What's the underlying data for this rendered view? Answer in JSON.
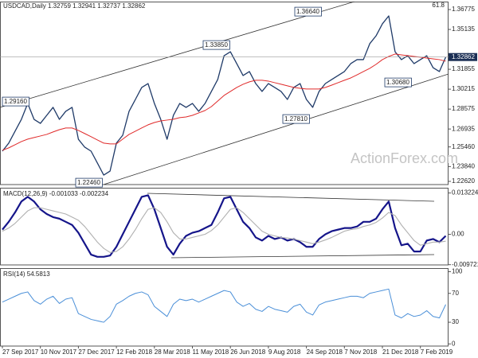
{
  "chart_data": [
    {
      "type": "line",
      "title": "USDCAD,Daily  1.32759 1.32941 1.32737 1.32862",
      "categories": [
        "27 Sep 2017",
        null,
        null,
        null,
        null,
        null,
        "10 Nov 2017",
        null,
        null,
        null,
        null,
        null,
        "27 Dec 2017",
        null,
        null,
        null,
        null,
        null,
        "12 Feb 2018",
        null,
        null,
        null,
        null,
        null,
        "28 Mar 2018",
        null,
        null,
        null,
        null,
        null,
        "11 May 2018",
        null,
        null,
        null,
        null,
        null,
        "26 Jun 2018",
        null,
        null,
        null,
        null,
        null,
        "9 Aug 2018",
        null,
        null,
        null,
        null,
        null,
        "24 Sep 2018",
        null,
        null,
        null,
        null,
        null,
        "7 Nov 2018",
        null,
        null,
        null,
        null,
        null,
        "21 Dec 2018",
        null,
        null,
        null,
        null,
        null,
        "7 Feb 2019",
        null,
        null,
        null,
        null
      ],
      "series": [
        {
          "color": "#1f3a68",
          "values": [
            1.2511,
            1.2577,
            1.2675,
            1.2773,
            1.2904,
            1.2773,
            1.274,
            1.2806,
            1.2872,
            1.2773,
            1.2839,
            1.2872,
            1.2609,
            1.2544,
            1.2511,
            1.2413,
            1.2314,
            1.2347,
            1.2577,
            1.2642,
            1.2839,
            1.2937,
            1.3036,
            1.3068,
            1.2904,
            1.2773,
            1.2609,
            1.2806,
            1.2904,
            1.2872,
            1.2904,
            1.2839,
            1.2904,
            1.3003,
            1.3101,
            1.3297,
            1.333,
            1.3232,
            1.3134,
            1.3167,
            1.3068,
            1.3003,
            1.3068,
            1.3036,
            1.3003,
            1.2937,
            1.3036,
            1.3068,
            1.2937,
            1.2872,
            1.3003,
            1.3068,
            1.3101,
            1.3134,
            1.3167,
            1.3232,
            1.3265,
            1.3265,
            1.3396,
            1.3461,
            1.356,
            1.3625,
            1.333,
            1.3265,
            1.3297,
            1.3232,
            1.3265,
            1.3297,
            1.3199,
            1.3167,
            1.3286
          ]
        },
        {
          "color": "#e02a2a",
          "values": [
            1.2518,
            1.2538,
            1.2564,
            1.259,
            1.261,
            1.2623,
            1.2636,
            1.2649,
            1.2669,
            1.2688,
            1.2702,
            1.2702,
            1.2682,
            1.2656,
            1.263,
            1.2603,
            1.2577,
            1.2571,
            1.2571,
            1.261,
            1.2649,
            1.2675,
            1.2702,
            1.2728,
            1.2747,
            1.276,
            1.2767,
            1.2774,
            1.2787,
            1.2793,
            1.2806,
            1.2826,
            1.2846,
            1.2878,
            1.2924,
            1.297,
            1.3003,
            1.3036,
            1.3062,
            1.3082,
            1.3095,
            1.3095,
            1.3088,
            1.3075,
            1.3062,
            1.3049,
            1.3036,
            1.3029,
            1.3023,
            1.3023,
            1.3023,
            1.3036,
            1.3055,
            1.3075,
            1.3095,
            1.3114,
            1.314,
            1.3167,
            1.3193,
            1.3226,
            1.3265,
            1.3291,
            1.3311,
            1.3304,
            1.3298,
            1.3291,
            1.3285,
            1.3278,
            1.3271,
            1.3265,
            1.3252
          ]
        }
      ],
      "ylim": [
        1.22358,
        1.3743
      ],
      "yticks": [
        1.36775,
        1.35135,
        1.31855,
        1.30215,
        1.28575,
        1.26935,
        {
          "value": 1.2546,
          "label": "1.25460"
        },
        {
          "value": 1.2384,
          "label": "1.23840"
        },
        {
          "value": 1.2262,
          "label": "1.22620"
        }
      ],
      "last_price": 1.32862,
      "level_label": "61.8",
      "annotations": [
        "1.36640",
        "1.33850",
        "1.29160",
        "1.22460",
        "1.27810",
        "1.30680"
      ],
      "watermark": "ActionForex.com"
    },
    {
      "type": "line",
      "title": "MACD(12,26,9) -0.001033 -0.002234",
      "series": [
        {
          "color": "#15158a",
          "values": [
            0.0015,
            0.004,
            0.007,
            0.0105,
            0.012,
            0.0105,
            0.008,
            0.0065,
            0.0055,
            0.005,
            0.004,
            0.003,
            0.0005,
            -0.003,
            -0.0065,
            -0.0072,
            -0.0072,
            -0.0068,
            -0.004,
            0,
            0.004,
            0.008,
            0.012,
            0.0125,
            0.008,
            0.002,
            -0.004,
            -0.0065,
            -0.003,
            -0.0005,
            0.0005,
            0.001,
            0.002,
            0.003,
            0.007,
            0.0115,
            0.012,
            0.008,
            0.004,
            0.002,
            -0.001,
            -0.002,
            -0.0005,
            -0.0015,
            -0.001,
            -0.002,
            -0.0015,
            -0.0025,
            -0.004,
            -0.004,
            -0.0015,
            0,
            0.001,
            0.0015,
            0.002,
            0.002,
            0.0025,
            0.004,
            0.004,
            0.005,
            0.008,
            0.0105,
            0.002,
            -0.0035,
            -0.003,
            -0.0055,
            -0.0055,
            -0.002,
            -0.0015,
            -0.0025,
            -0.0005
          ]
        },
        {
          "color": "#b0b0b0",
          "values": [
            0.001,
            0.002,
            0.0035,
            0.0055,
            0.0075,
            0.0085,
            0.0085,
            0.008,
            0.0075,
            0.007,
            0.0065,
            0.0055,
            0.0045,
            0.0025,
            0,
            -0.0025,
            -0.0045,
            -0.0058,
            -0.0055,
            -0.004,
            -0.0015,
            0.0015,
            0.005,
            0.008,
            0.0085,
            0.007,
            0.004,
            0.0005,
            -0.0015,
            -0.0015,
            -0.001,
            -0.0005,
            0,
            0.0012,
            0.003,
            0.0055,
            0.008,
            0.0085,
            0.007,
            0.005,
            0.003,
            0.001,
            0,
            -0.0005,
            -0.001,
            -0.0012,
            -0.0015,
            -0.002,
            -0.0025,
            -0.003,
            -0.0025,
            -0.0018,
            -0.001,
            0,
            0.001,
            0.0015,
            0.0018,
            0.0025,
            0.003,
            0.0038,
            0.0052,
            0.007,
            0.006,
            0.003,
            0.0005,
            -0.002,
            -0.0035,
            -0.003,
            -0.0025,
            -0.0025,
            -0.0022
          ]
        }
      ],
      "ylim": [
        -0.0098,
        0.0149
      ],
      "yticks": [
        0.013224,
        {
          "value": 0,
          "label": "0.00"
        },
        -0.009721
      ]
    },
    {
      "type": "line",
      "title": "RSI(14) 54.5813",
      "series": [
        {
          "color": "#4a8fd8",
          "values": [
            58,
            62,
            66,
            70,
            72,
            60,
            55,
            62,
            66,
            56,
            62,
            64,
            42,
            38,
            34,
            32,
            30,
            38,
            55,
            60,
            66,
            70,
            72,
            68,
            52,
            45,
            38,
            55,
            62,
            60,
            62,
            58,
            62,
            66,
            70,
            74,
            72,
            58,
            52,
            56,
            48,
            45,
            52,
            48,
            46,
            44,
            52,
            55,
            44,
            40,
            54,
            58,
            60,
            62,
            64,
            66,
            66,
            64,
            70,
            72,
            74,
            76,
            40,
            36,
            42,
            38,
            40,
            46,
            38,
            36,
            54.5813
          ]
        }
      ],
      "ylim": [
        -3,
        105
      ],
      "yticks": [
        100,
        70,
        30,
        0
      ]
    }
  ]
}
